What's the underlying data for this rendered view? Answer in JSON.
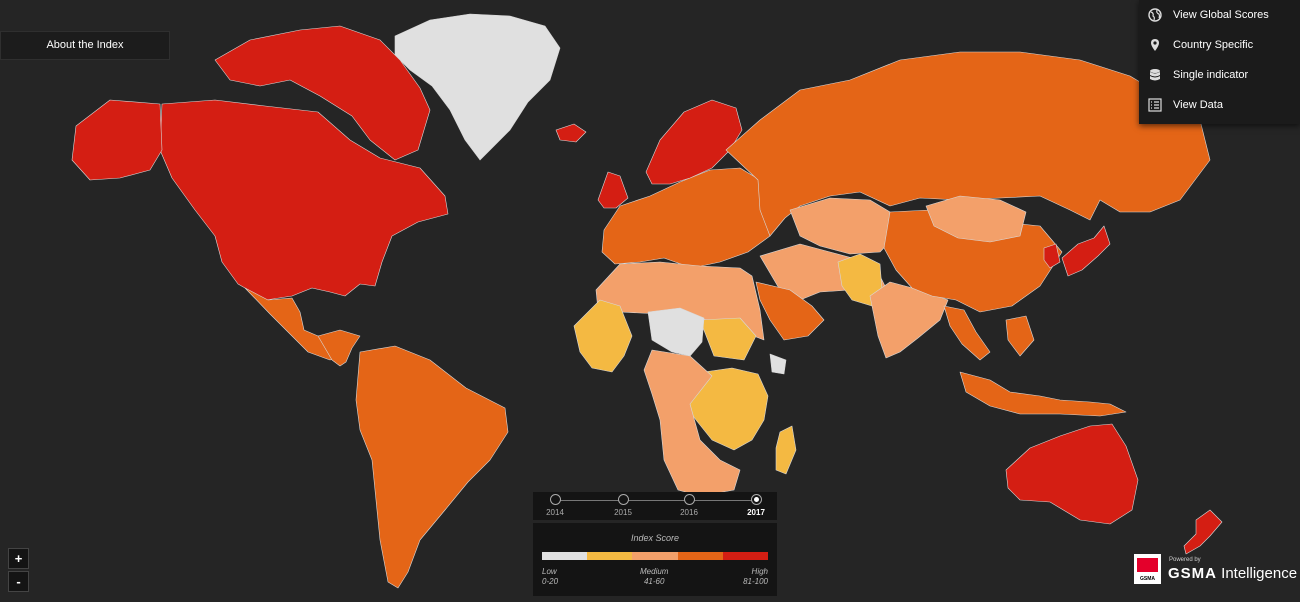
{
  "about": {
    "label": "About the Index"
  },
  "menu": [
    {
      "label": "View Global Scores",
      "icon": "globe-icon"
    },
    {
      "label": "Country Specific",
      "icon": "map-pin-icon"
    },
    {
      "label": "Single indicator",
      "icon": "database-icon"
    },
    {
      "label": "View Data",
      "icon": "list-icon"
    }
  ],
  "zoom": {
    "in_label": "+",
    "out_label": "-"
  },
  "timeline": {
    "years": [
      "2014",
      "2015",
      "2016",
      "2017"
    ],
    "selected": "2017"
  },
  "legend": {
    "title": "Index Score",
    "low_label": "Low",
    "low_range": "0-20",
    "medium_label": "Medium",
    "medium_range": "41-60",
    "high_label": "High",
    "high_range": "81-100",
    "colors": [
      "#e0e0e0",
      "#f4b942",
      "#f3a06a",
      "#e46517",
      "#d41e13"
    ]
  },
  "branding": {
    "powered_by": "Powered by",
    "name_bold": "GSMA",
    "name_rest": " Intelligence",
    "logo_text": "GSMA"
  },
  "map_regions": [
    {
      "name": "greenland",
      "level": 0
    },
    {
      "name": "north-america",
      "level": 4
    },
    {
      "name": "canada-islands",
      "level": 4
    },
    {
      "name": "mexico",
      "level": 3
    },
    {
      "name": "central-america",
      "level": 3
    },
    {
      "name": "south-america",
      "level": 3
    },
    {
      "name": "europe",
      "level": 3
    },
    {
      "name": "iceland",
      "level": 4
    },
    {
      "name": "uk",
      "level": 4
    },
    {
      "name": "nordics",
      "level": 4
    },
    {
      "name": "russia",
      "level": 3
    },
    {
      "name": "north-africa",
      "level": 2
    },
    {
      "name": "west-africa",
      "level": 1
    },
    {
      "name": "sahel",
      "level": 0
    },
    {
      "name": "east-africa",
      "level": 1
    },
    {
      "name": "southern-africa",
      "level": 2
    },
    {
      "name": "madagascar",
      "level": 1
    },
    {
      "name": "middle-east",
      "level": 2
    },
    {
      "name": "arabia",
      "level": 3
    },
    {
      "name": "central-asia",
      "level": 2
    },
    {
      "name": "pakistan",
      "level": 1
    },
    {
      "name": "india",
      "level": 2
    },
    {
      "name": "china",
      "level": 3
    },
    {
      "name": "mongolia",
      "level": 2
    },
    {
      "name": "japan",
      "level": 4
    },
    {
      "name": "korea",
      "level": 4
    },
    {
      "name": "southeast-asia",
      "level": 3
    },
    {
      "name": "indonesia",
      "level": 3
    },
    {
      "name": "australia",
      "level": 4
    },
    {
      "name": "new-zealand",
      "level": 4
    }
  ]
}
